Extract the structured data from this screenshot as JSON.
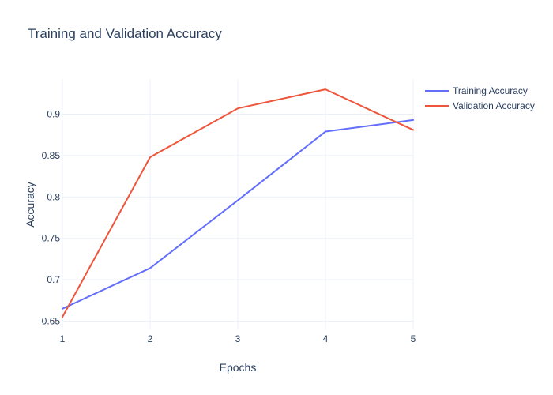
{
  "chart_data": {
    "type": "line",
    "title": "Training and Validation Accuracy",
    "xlabel": "Epochs",
    "ylabel": "Accuracy",
    "x": [
      1,
      2,
      3,
      4,
      5
    ],
    "xlim": [
      1,
      5
    ],
    "ylim": [
      0.64,
      0.9425
    ],
    "x_ticks": [
      "1",
      "2",
      "3",
      "4",
      "5"
    ],
    "y_ticks": [
      0.65,
      0.7,
      0.75,
      0.8,
      0.85,
      0.9
    ],
    "y_tick_labels": [
      "0.65",
      "0.7",
      "0.75",
      "0.8",
      "0.85",
      "0.9"
    ],
    "grid": true,
    "legend_position": "top-right",
    "series": [
      {
        "name": "Training Accuracy",
        "color": "#636efa",
        "values": [
          0.665,
          0.714,
          0.796,
          0.879,
          0.893
        ]
      },
      {
        "name": "Validation Accuracy",
        "color": "#ef553b",
        "values": [
          0.655,
          0.848,
          0.907,
          0.93,
          0.881
        ]
      }
    ]
  }
}
